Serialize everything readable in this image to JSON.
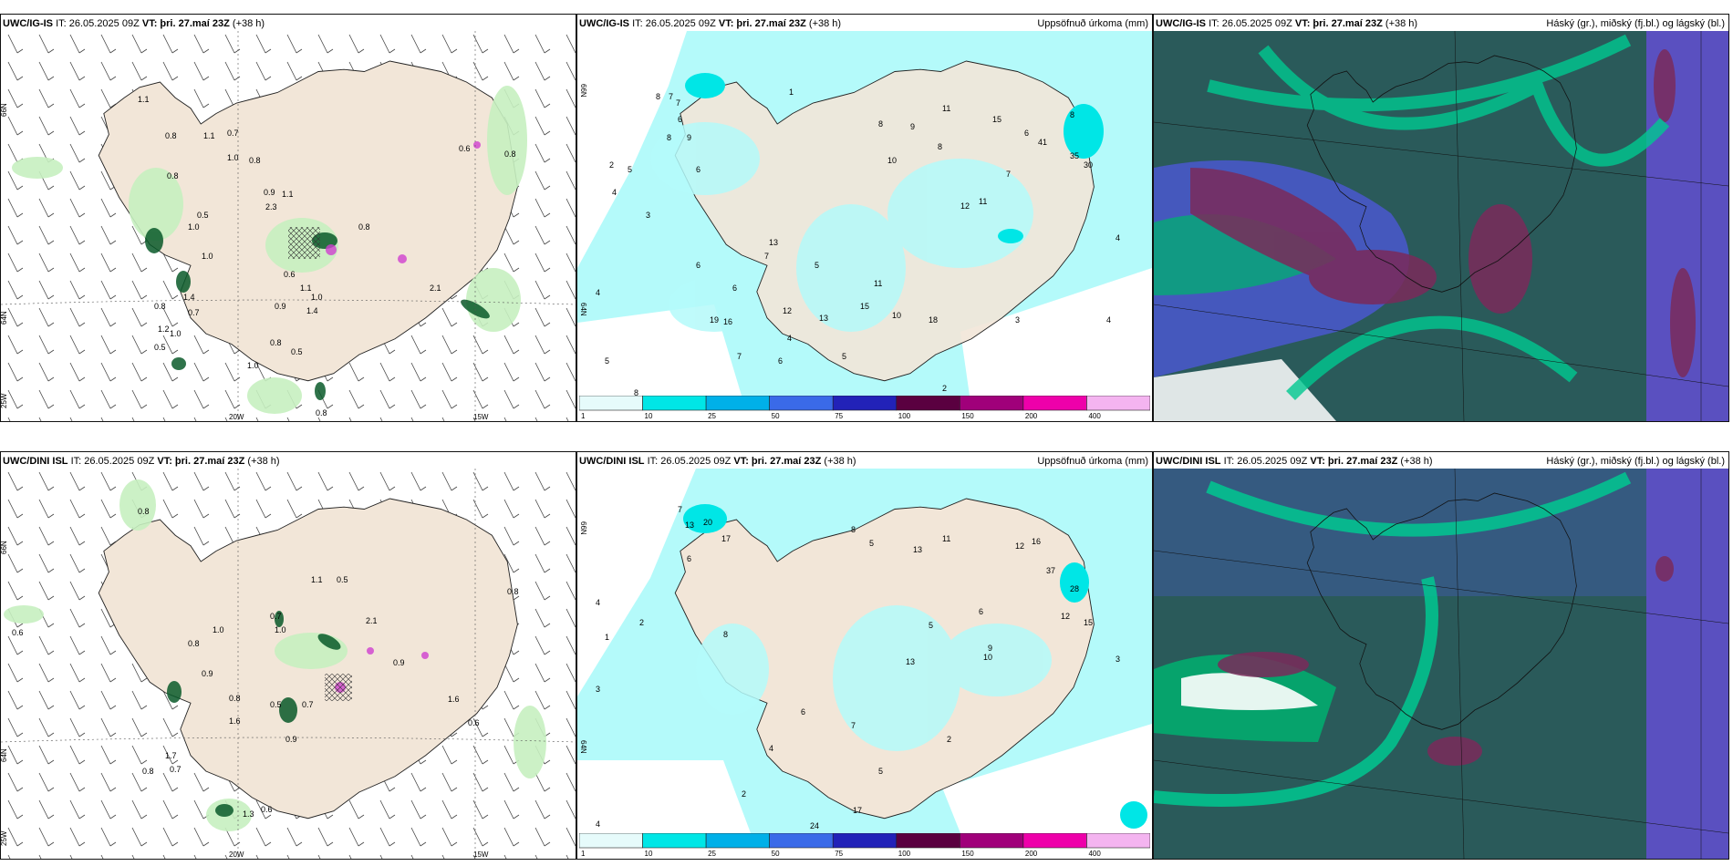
{
  "panels": [
    {
      "model": "UWC/IG-IS",
      "it": "IT: 26.05.2025 09Z",
      "vt_label": "VT:",
      "vt": "þri. 27.maí 23Z",
      "lead": "(+38 h)",
      "right": "",
      "lon_labels": [
        "20W",
        "15W"
      ],
      "lat_labels": [
        "66N",
        "64N",
        "25W"
      ]
    },
    {
      "model": "UWC/IG-IS",
      "it": "IT: 26.05.2025 09Z",
      "vt_label": "VT:",
      "vt": "þri. 27.maí 23Z",
      "lead": "(+38 h)",
      "right": "Uppsöfnuð úrkoma (mm)",
      "lat_labels": [
        "66N",
        "64N"
      ]
    },
    {
      "model": "UWC/IG-IS",
      "it": "IT: 26.05.2025 09Z",
      "vt_label": "VT:",
      "vt": "þri. 27.maí 23Z",
      "lead": "(+38 h)",
      "right": "Háský (gr.), miðský (fj.bl.) og lágský (bl.)"
    },
    {
      "model": "UWC/DINI ISL",
      "it": "IT: 26.05.2025 09Z",
      "vt_label": "VT:",
      "vt": "þri. 27.maí 23Z",
      "lead": "(+38 h)",
      "right": "",
      "lon_labels": [
        "20W",
        "15W"
      ],
      "lat_labels": [
        "66N",
        "64N",
        "25W"
      ]
    },
    {
      "model": "UWC/DINI ISL",
      "it": "IT: 26.05.2025 09Z",
      "vt_label": "VT:",
      "vt": "þri. 27.maí 23Z",
      "lead": "(+38 h)",
      "right": "Uppsöfnuð úrkoma (mm)",
      "lat_labels": [
        "66N",
        "64N"
      ]
    },
    {
      "model": "UWC/DINI ISL",
      "it": "IT: 26.05.2025 09Z",
      "vt_label": "VT:",
      "vt": "þri. 27.maí 23Z",
      "lead": "(+38 h)",
      "right": "Háský (gr.), miðský (fj.bl.) og lágský (bl.)"
    }
  ],
  "precip_scale": {
    "ticks": [
      "1",
      "10",
      "25",
      "50",
      "75",
      "100",
      "150",
      "200",
      "400"
    ],
    "colors": [
      "#e6fbfb",
      "#00e6e6",
      "#00b0e8",
      "#3a6ae8",
      "#2222b8",
      "#5a0040",
      "#a0007a",
      "#ee00aa",
      "#f4b4f0"
    ]
  },
  "colors": {
    "land": "#f2e6d8",
    "sea_precip": "#b4fafa",
    "green_light": "#c6f0c0",
    "green_dark": "#0a5a2a",
    "cloud_dark": "#2a5a5a",
    "cloud_mid": "#00a070",
    "cloud_high": "#7a2a5a"
  },
  "rain_labels_ig": [
    "1.1",
    "0.8",
    "1.1",
    "0.7",
    "1.0",
    "0.8",
    "0.9",
    "1.1",
    "2.3",
    "0.8",
    "1.0",
    "0.6",
    "0.8",
    "1.4",
    "1.0",
    "0.8",
    "0.5",
    "2.1",
    "0.6",
    "0.5",
    "0.8",
    "1.1",
    "0.9",
    "1.4",
    "1.0",
    "1.2",
    "0.7",
    "0.8",
    "1.0",
    "0.5",
    "1.0",
    "0.8"
  ],
  "rain_labels_dini": [
    "0.8",
    "1.1",
    "0.5",
    "0.6",
    "1.0",
    "0.8",
    "0.7",
    "1.0",
    "0.9",
    "2.1",
    "1.6",
    "0.5",
    "0.7",
    "0.9",
    "0.8",
    "1.6",
    "0.6",
    "1.7",
    "0.8",
    "0.7",
    "1.3",
    "0.6",
    "0.9",
    "0.8"
  ],
  "precip_pts_ig": [
    "7",
    "6",
    "9",
    "8",
    "5",
    "1",
    "6",
    "8",
    "7",
    "4",
    "3",
    "2",
    "4",
    "5",
    "6",
    "10",
    "13",
    "8",
    "8",
    "11",
    "9",
    "12",
    "8",
    "15",
    "11",
    "6",
    "7",
    "11",
    "13",
    "10",
    "18",
    "16",
    "4",
    "5",
    "15",
    "41",
    "30",
    "19",
    "6",
    "7",
    "35",
    "4",
    "2",
    "8",
    "9",
    "10",
    "7",
    "12",
    "6",
    "5",
    "4",
    "3"
  ],
  "precip_pts_dini": [
    "7",
    "13",
    "20",
    "17",
    "6",
    "4",
    "2",
    "1",
    "3",
    "5",
    "8",
    "12",
    "11",
    "13",
    "16",
    "37",
    "28",
    "12",
    "6",
    "5",
    "9",
    "10",
    "15",
    "13",
    "8",
    "6",
    "7",
    "4",
    "24",
    "3",
    "2",
    "1",
    "17",
    "5",
    "6",
    "4",
    "2"
  ]
}
